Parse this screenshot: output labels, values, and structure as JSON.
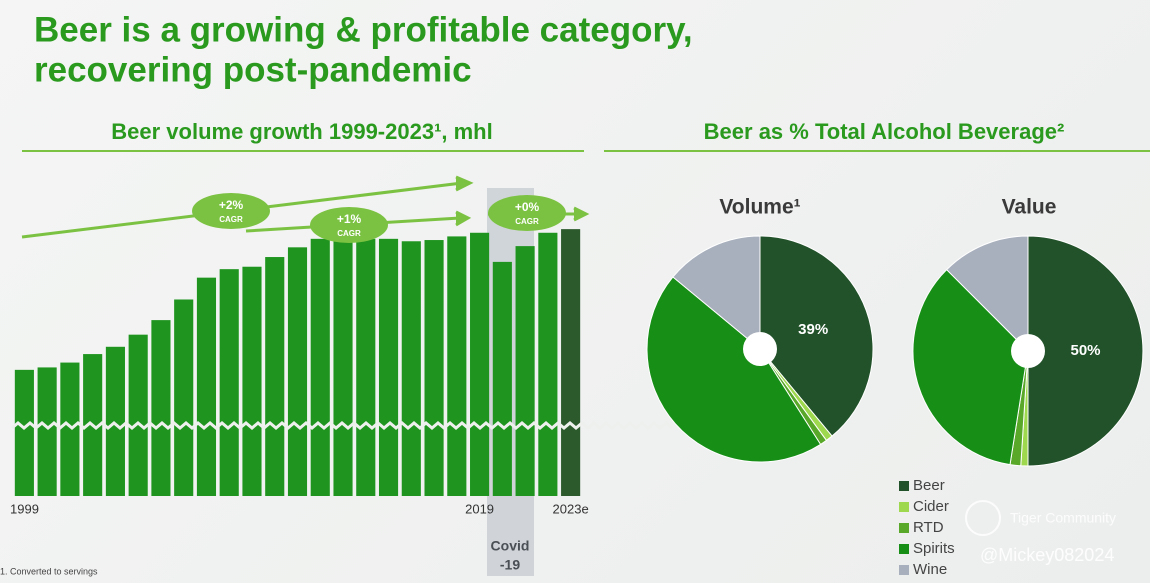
{
  "title": [
    "Beer is a growing & profitable category,",
    "recovering post-pandemic"
  ],
  "right_heading": "Beer as % Total Alcohol Beverage²",
  "footnote": "1. Converted to servings",
  "watermarks": [
    "Tiger Community",
    "@Mickey082024"
  ],
  "chart_data": [
    {
      "type": "bar",
      "title": "Beer volume growth 1999-2023¹, mhl",
      "categories": [
        "1999",
        null,
        null,
        null,
        null,
        null,
        null,
        null,
        null,
        null,
        null,
        null,
        null,
        null,
        null,
        null,
        null,
        null,
        null,
        null,
        "2019",
        null,
        null,
        null,
        "2023e"
      ],
      "values": [
        1320,
        1330,
        1350,
        1385,
        1415,
        1465,
        1525,
        1610,
        1700,
        1735,
        1745,
        1785,
        1825,
        1860,
        1850,
        1860,
        1860,
        1850,
        1855,
        1870,
        1885,
        1765,
        1830,
        1885,
        1900
      ],
      "colors": [
        "#1f951f",
        "#1f951f",
        "#1f951f",
        "#1f951f",
        "#1f951f",
        "#1f951f",
        "#1f951f",
        "#1f951f",
        "#1f951f",
        "#1f951f",
        "#1f951f",
        "#1f951f",
        "#1f951f",
        "#1f951f",
        "#1f951f",
        "#1f951f",
        "#1f951f",
        "#1f951f",
        "#1f951f",
        "#1f951f",
        "#1f951f",
        "#1f951f",
        "#1f951f",
        "#1f951f",
        "#2d5a2d"
      ],
      "ylim": [
        800,
        1950
      ],
      "annotations": [
        {
          "text": "+2%",
          "sub": "CAGR"
        },
        {
          "text": "+1%",
          "sub": "CAGR"
        },
        {
          "text": "+0%",
          "sub": "CAGR"
        }
      ],
      "covid_label": [
        "Covid",
        "-19"
      ]
    },
    {
      "type": "pie",
      "title": "Volume¹",
      "categories": [
        "Beer",
        "Cider",
        "RTD",
        "Spirits",
        "Wine"
      ],
      "values": [
        39,
        1,
        1,
        45,
        14
      ],
      "value_labels": [
        "39%",
        null,
        null,
        null,
        null
      ],
      "colors": [
        "#22522a",
        "#9ed84e",
        "#5aa82a",
        "#178f17",
        "#a9b0bd"
      ]
    },
    {
      "type": "pie",
      "title": "Value",
      "categories": [
        "Beer",
        "Cider",
        "RTD",
        "Spirits",
        "Wine"
      ],
      "values": [
        50,
        1,
        1.5,
        35,
        12.5
      ],
      "value_labels": [
        "50%",
        null,
        null,
        null,
        null
      ],
      "colors": [
        "#22522a",
        "#9ed84e",
        "#5aa82a",
        "#178f17",
        "#a9b0bd"
      ],
      "legend": "bottom-right"
    }
  ]
}
